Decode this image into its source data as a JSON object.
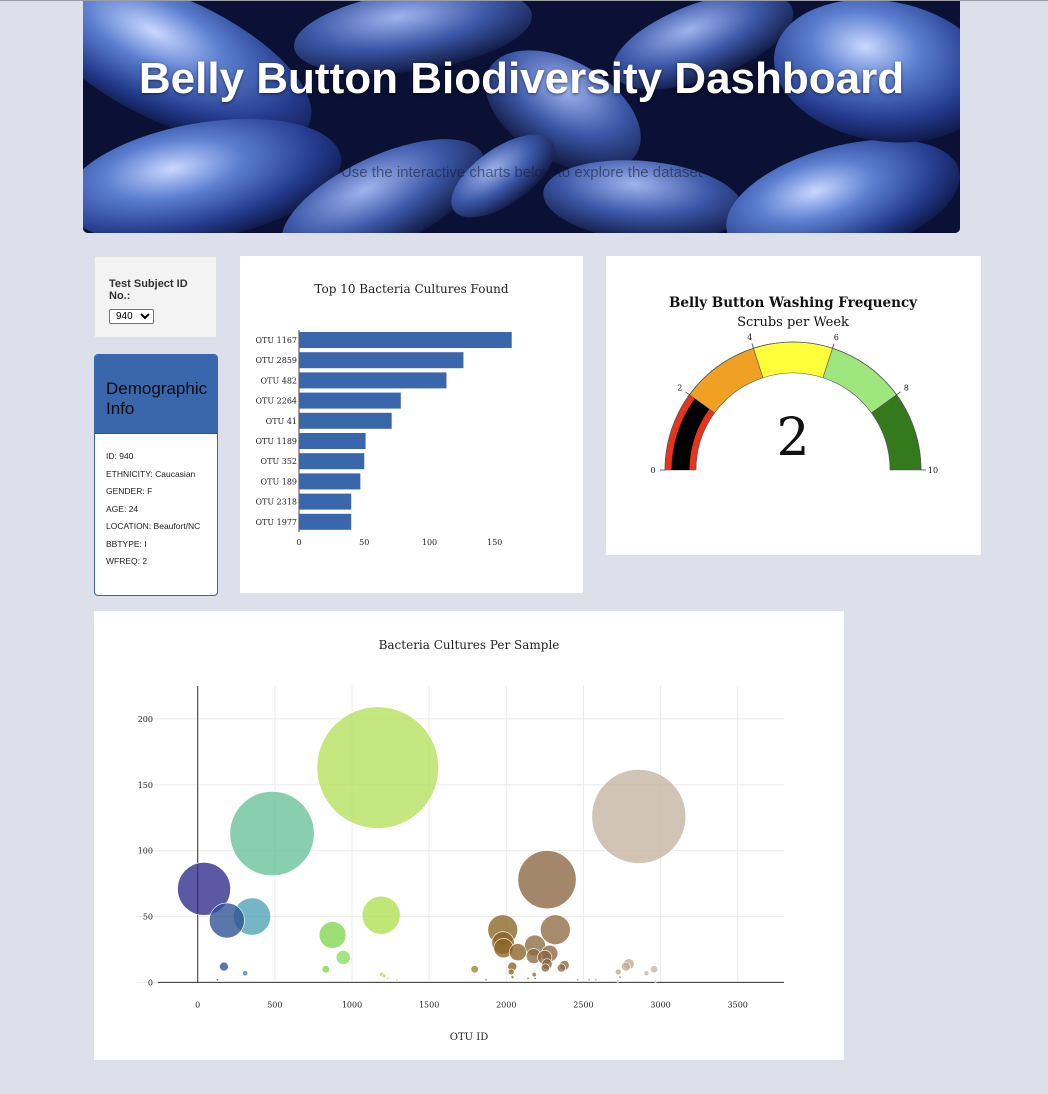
{
  "header": {
    "title": "Belly Button Biodiversity Dashboard",
    "subtitle": "Use the interactive charts below to explore the dataset"
  },
  "selector": {
    "label": "Test Subject ID No.:",
    "selected": "940",
    "options": [
      "940"
    ]
  },
  "demographics": {
    "heading": "Demographic Info",
    "rows": [
      "ID: 940",
      "ETHNICITY: Caucasian",
      "GENDER: F",
      "AGE: 24",
      "LOCATION: Beaufort/NC",
      "BBTYPE: I",
      "WFREQ: 2"
    ]
  },
  "colors": {
    "bar": "#3a66ab",
    "panel_header": "#3a66ab",
    "background": "#dde0ea"
  },
  "chart_data": [
    {
      "type": "bar",
      "orientation": "horizontal",
      "title": "Top 10 Bacteria Cultures Found",
      "categories": [
        "OTU 1167",
        "OTU 2859",
        "OTU 482",
        "OTU 2264",
        "OTU 41",
        "OTU 1189",
        "OTU 352",
        "OTU 189",
        "OTU 2318",
        "OTU 1977"
      ],
      "values": [
        163,
        126,
        113,
        78,
        71,
        51,
        50,
        47,
        40,
        40
      ],
      "xlim": [
        0,
        170
      ],
      "xticks": [
        "0",
        "50",
        "100",
        "150"
      ],
      "color": "#3a66ab"
    },
    {
      "type": "gauge",
      "title": "Belly Button Washing Frequency",
      "subtitle": "Scrubs per Week",
      "value": 2,
      "value_label": "2",
      "range": [
        0,
        10
      ],
      "ticks": [
        "0",
        "2",
        "4",
        "6",
        "8",
        "10"
      ],
      "steps": [
        {
          "range": [
            0,
            2
          ],
          "color": "#e8341c"
        },
        {
          "range": [
            2,
            4
          ],
          "color": "#f0a124"
        },
        {
          "range": [
            4,
            6
          ],
          "color": "#ffff3a"
        },
        {
          "range": [
            6,
            8
          ],
          "color": "#9ee77e"
        },
        {
          "range": [
            8,
            10
          ],
          "color": "#347a1c"
        }
      ],
      "bar_color": "#000000"
    },
    {
      "type": "scatter",
      "style": "bubble",
      "title": "Bacteria Cultures Per Sample",
      "xlabel": "OTU ID",
      "ylabel": "",
      "xlim": [
        -400,
        3800
      ],
      "ylim": [
        -5,
        225
      ],
      "xticks": [
        "0",
        "500",
        "1000",
        "1500",
        "2000",
        "2500",
        "3000",
        "3500"
      ],
      "yticks": [
        "0",
        "50",
        "100",
        "150",
        "200"
      ],
      "grid": true,
      "points": [
        {
          "x": 1167,
          "y": 163,
          "c": "#b5e05c"
        },
        {
          "x": 2859,
          "y": 126,
          "c": "#c4b4a0"
        },
        {
          "x": 482,
          "y": 113,
          "c": "#66c197"
        },
        {
          "x": 2264,
          "y": 78,
          "c": "#8b6440"
        },
        {
          "x": 41,
          "y": 71,
          "c": "#2d2a8a"
        },
        {
          "x": 1189,
          "y": 51,
          "c": "#aedf50"
        },
        {
          "x": 352,
          "y": 50,
          "c": "#4da2b4"
        },
        {
          "x": 189,
          "y": 47,
          "c": "#2d4f92"
        },
        {
          "x": 2318,
          "y": 40,
          "c": "#8e6a40"
        },
        {
          "x": 1977,
          "y": 40,
          "c": "#8a6425"
        },
        {
          "x": 874,
          "y": 36,
          "c": "#7fd650"
        },
        {
          "x": 1979,
          "y": 30,
          "c": "#8a6425"
        },
        {
          "x": 2186,
          "y": 28,
          "c": "#8a6a40"
        },
        {
          "x": 1982,
          "y": 26,
          "c": "#8a6425"
        },
        {
          "x": 2075,
          "y": 23,
          "c": "#8a6425"
        },
        {
          "x": 2281,
          "y": 22,
          "c": "#8b6440"
        },
        {
          "x": 2178,
          "y": 20,
          "c": "#8a6a40"
        },
        {
          "x": 943,
          "y": 19,
          "c": "#8ade60"
        },
        {
          "x": 2249,
          "y": 19,
          "c": "#8b6440"
        },
        {
          "x": 2264,
          "y": 14,
          "c": "#8b6440"
        },
        {
          "x": 2377,
          "y": 13,
          "c": "#8e6a40"
        },
        {
          "x": 2795,
          "y": 14,
          "c": "#c0aa90"
        },
        {
          "x": 2775,
          "y": 12,
          "c": "#c0aa90"
        },
        {
          "x": 2039,
          "y": 12,
          "c": "#8a6425"
        },
        {
          "x": 2357,
          "y": 11,
          "c": "#8e6a40"
        },
        {
          "x": 2253,
          "y": 11,
          "c": "#8b6440"
        },
        {
          "x": 2958,
          "y": 10,
          "c": "#c8b8a4"
        },
        {
          "x": 170,
          "y": 12,
          "c": "#2d4f92"
        },
        {
          "x": 1795,
          "y": 10,
          "c": "#9a8030"
        },
        {
          "x": 830,
          "y": 10,
          "c": "#7fd650"
        },
        {
          "x": 2726,
          "y": 8,
          "c": "#c0aa90"
        },
        {
          "x": 2908,
          "y": 7,
          "c": "#c8b8a4"
        },
        {
          "x": 2032,
          "y": 8,
          "c": "#8a6425"
        },
        {
          "x": 2181,
          "y": 6,
          "c": "#8a6a40"
        },
        {
          "x": 308,
          "y": 7,
          "c": "#4d7fb4"
        },
        {
          "x": 1193,
          "y": 6,
          "c": "#aedf50"
        },
        {
          "x": 1208,
          "y": 5,
          "c": "#aedf50"
        },
        {
          "x": 2040,
          "y": 4,
          "c": "#8a6425"
        },
        {
          "x": 2737,
          "y": 4,
          "c": "#c0aa90"
        },
        {
          "x": 2141,
          "y": 3,
          "c": "#8a6a40"
        },
        {
          "x": 2188,
          "y": 3,
          "c": "#8a6a40"
        },
        {
          "x": 1231,
          "y": 3,
          "c": "#aedf50"
        },
        {
          "x": 1291,
          "y": 2,
          "c": "#b5e05c"
        },
        {
          "x": 2462,
          "y": 2,
          "c": "#a8906c"
        },
        {
          "x": 2537,
          "y": 2,
          "c": "#b09878"
        },
        {
          "x": 2580,
          "y": 2,
          "c": "#b09878"
        },
        {
          "x": 1868,
          "y": 2,
          "c": "#9a8030"
        },
        {
          "x": 128,
          "y": 2,
          "c": "#2d4f92"
        },
        {
          "x": 2722,
          "y": 1,
          "c": "#c0aa90"
        },
        {
          "x": 2967,
          "y": 1,
          "c": "#c8b8a4"
        }
      ]
    }
  ]
}
